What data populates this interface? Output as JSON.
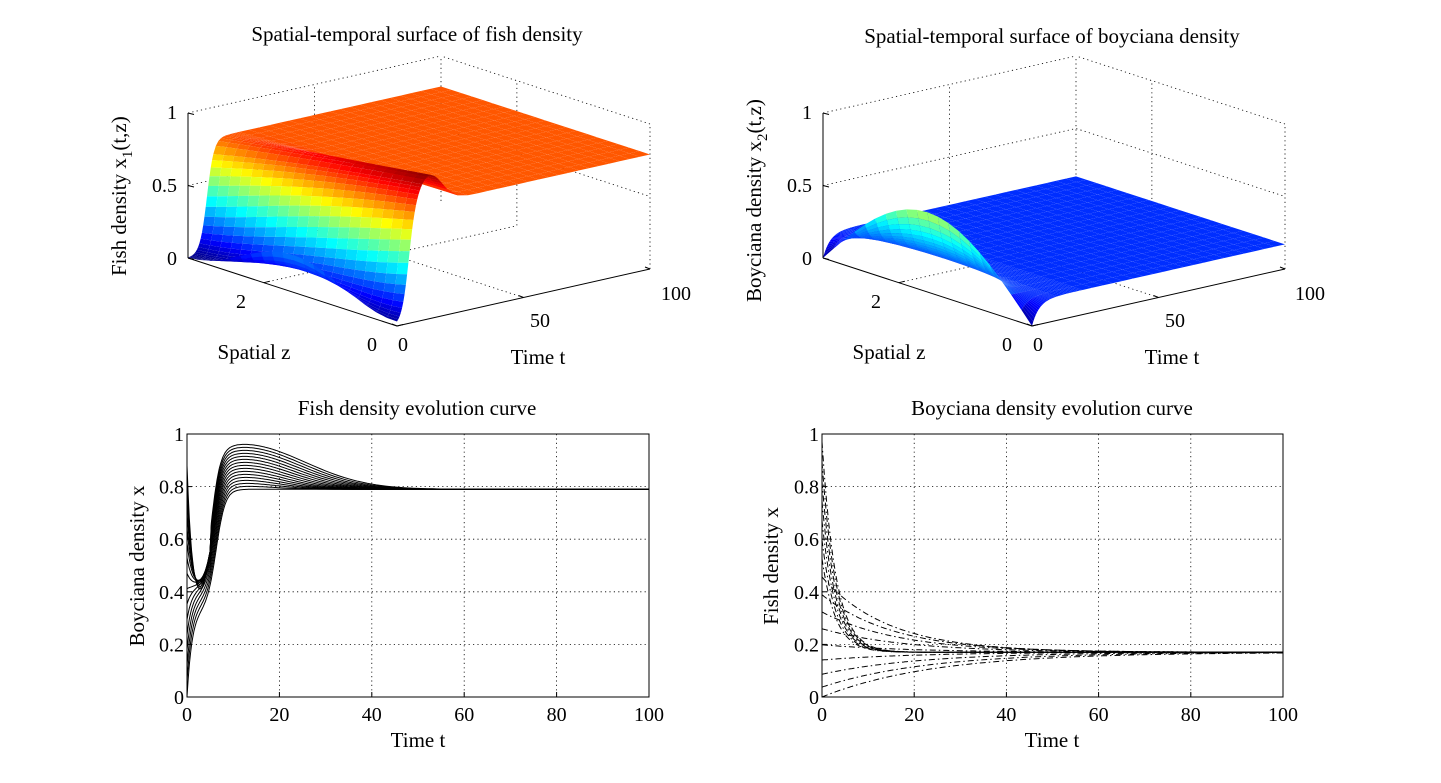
{
  "chart_data": [
    {
      "type": "surface3d",
      "title": "Spatial-temporal surface of fish density",
      "zlabel": "Fish density x",
      "zlabel_sub": "1",
      "zlabel_suffix": "(t,z)",
      "xlabel": "Time t",
      "ylabel": "Spatial z",
      "t_ticks": [
        "0",
        "50",
        "100"
      ],
      "z_ticks": [
        "0",
        "2"
      ],
      "v_ticks": [
        "0",
        "0.5",
        "1"
      ],
      "t_range": [
        0,
        100
      ],
      "z_range": [
        0,
        3.14
      ],
      "v_range": [
        0,
        1
      ],
      "steady_state": 0.79,
      "colormap": "jet"
    },
    {
      "type": "surface3d",
      "title": "Spatial-temporal surface of boyciana density",
      "zlabel": "Boyciana density x",
      "zlabel_sub": "2",
      "zlabel_suffix": "(t,z)",
      "xlabel": "Time t",
      "ylabel": "Spatial z",
      "t_ticks": [
        "0",
        "50",
        "100"
      ],
      "z_ticks": [
        "0",
        "2"
      ],
      "v_ticks": [
        "0",
        "0.5",
        "1"
      ],
      "t_range": [
        0,
        100
      ],
      "z_range": [
        0,
        3.14
      ],
      "v_range": [
        0,
        1
      ],
      "steady_state": 0.17,
      "colormap": "jet"
    },
    {
      "type": "line",
      "title": "Fish density evolution curve",
      "xlabel": "Time t",
      "ylabel": "Boyciana density x",
      "xlim": [
        0,
        100
      ],
      "ylim": [
        0,
        1
      ],
      "x_ticks": [
        "0",
        "20",
        "40",
        "60",
        "80",
        "100"
      ],
      "y_ticks": [
        "0",
        "0.2",
        "0.4",
        "0.6",
        "0.8",
        "1"
      ],
      "grid": true,
      "line_style": "solid",
      "series_count": 16,
      "steady_state": 0.79,
      "initial_range": [
        0.0,
        0.88
      ],
      "dip_time": 3.5,
      "dip_range": [
        0.33,
        0.42
      ],
      "peak_range": [
        0.79,
        0.97
      ],
      "peak_time": 12,
      "settle_time": 60
    },
    {
      "type": "line",
      "title": "Boyciana density evolution curve",
      "xlabel": "Time t",
      "ylabel": "Fish density x",
      "xlim": [
        0,
        100
      ],
      "ylim": [
        0,
        1
      ],
      "x_ticks": [
        "0",
        "20",
        "40",
        "60",
        "80",
        "100"
      ],
      "y_ticks": [
        "0",
        "0.2",
        "0.4",
        "0.6",
        "0.8",
        "1"
      ],
      "grid": true,
      "line_style": "dashdot",
      "series_count": 16,
      "steady_state": 0.17,
      "initial_range": [
        0.0,
        0.97
      ],
      "decay_time_constant": 3.0,
      "settle_time": 80
    }
  ]
}
